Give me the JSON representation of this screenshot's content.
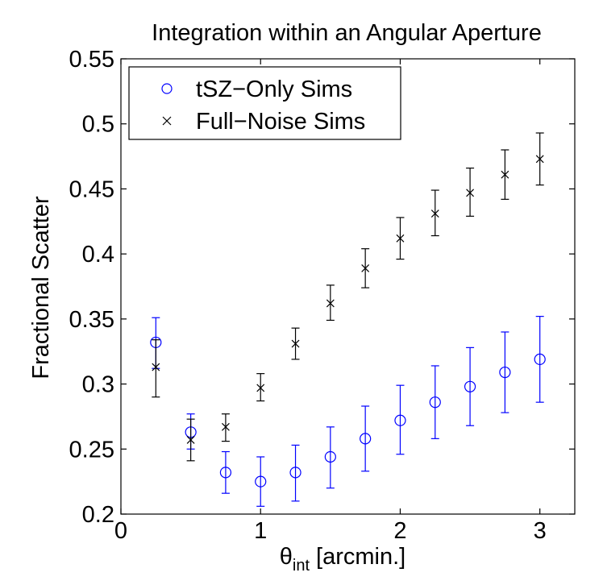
{
  "chart_data": {
    "type": "scatter",
    "title": "Integration within an Angular Aperture",
    "xlabel_main": "θ",
    "xlabel_sub": "int",
    "xlabel_rest": " [arcmin.]",
    "ylabel": "Fractional Scatter",
    "xlim": [
      0,
      3.25
    ],
    "ylim": [
      0.2,
      0.55
    ],
    "xticks": [
      0,
      1,
      2,
      3
    ],
    "xtick_labels": [
      "0",
      "1",
      "2",
      "3"
    ],
    "yticks": [
      0.2,
      0.25,
      0.3,
      0.35,
      0.4,
      0.45,
      0.5,
      0.55
    ],
    "ytick_labels": [
      "0.2",
      "0.25",
      "0.3",
      "0.35",
      "0.4",
      "0.45",
      "0.5",
      "0.55"
    ],
    "grid": false,
    "legend_position": "top-left",
    "series": [
      {
        "name": "tSZ−Only Sims",
        "marker": "circle",
        "color": "#0000ff",
        "x": [
          0.25,
          0.5,
          0.75,
          1.0,
          1.25,
          1.5,
          1.75,
          2.0,
          2.25,
          2.5,
          2.75,
          3.0
        ],
        "y": [
          0.332,
          0.263,
          0.232,
          0.225,
          0.232,
          0.244,
          0.258,
          0.272,
          0.286,
          0.298,
          0.309,
          0.319
        ],
        "yerr_low": [
          0.312,
          0.25,
          0.216,
          0.206,
          0.21,
          0.22,
          0.233,
          0.246,
          0.258,
          0.268,
          0.278,
          0.286
        ],
        "yerr_high": [
          0.351,
          0.277,
          0.248,
          0.244,
          0.253,
          0.267,
          0.283,
          0.299,
          0.314,
          0.328,
          0.34,
          0.352
        ]
      },
      {
        "name": "Full−Noise Sims",
        "marker": "x",
        "color": "#000000",
        "x": [
          0.25,
          0.5,
          0.75,
          1.0,
          1.25,
          1.5,
          1.75,
          2.0,
          2.25,
          2.5,
          2.75,
          3.0
        ],
        "y": [
          0.313,
          0.257,
          0.267,
          0.297,
          0.331,
          0.362,
          0.389,
          0.412,
          0.431,
          0.447,
          0.461,
          0.473
        ],
        "yerr_low": [
          0.29,
          0.241,
          0.256,
          0.287,
          0.319,
          0.349,
          0.374,
          0.396,
          0.414,
          0.429,
          0.442,
          0.453
        ],
        "yerr_high": [
          0.334,
          0.273,
          0.277,
          0.308,
          0.343,
          0.376,
          0.404,
          0.428,
          0.449,
          0.466,
          0.48,
          0.493
        ]
      }
    ]
  }
}
